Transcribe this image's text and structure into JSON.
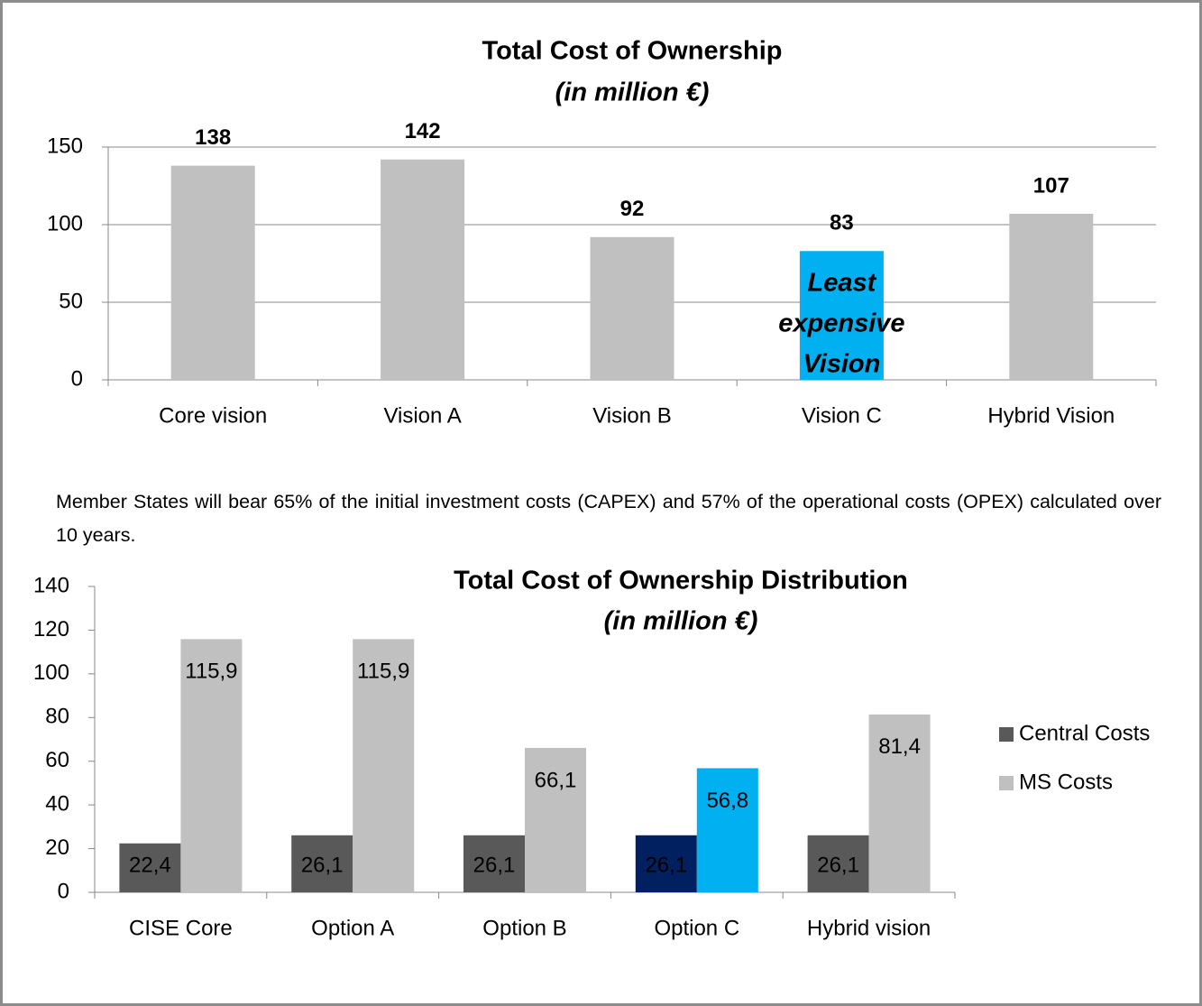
{
  "chart_data": [
    {
      "type": "bar",
      "title": "Total Cost of Ownership",
      "subtitle": "(in million €)",
      "categories": [
        "Core vision",
        "Vision A",
        "Vision B",
        "Vision C",
        "Hybrid Vision"
      ],
      "values": [
        138,
        142,
        92,
        83,
        107
      ],
      "colors": [
        "#c0c0c0",
        "#c0c0c0",
        "#c0c0c0",
        "#00b0f0",
        "#c0c0c0"
      ],
      "ylim": [
        0,
        150
      ],
      "yticks": [
        0,
        50,
        100,
        150
      ],
      "grid": true,
      "annotation": {
        "category": 3,
        "lines": [
          "Least",
          "expensive",
          "Vision"
        ]
      }
    },
    {
      "type": "grouped_bar",
      "title": "Total Cost of Ownership Distribution",
      "subtitle": "(in million €)",
      "categories": [
        "CISE Core",
        "Option A",
        "Option B",
        "Option C",
        "Hybrid vision"
      ],
      "series": [
        {
          "name": "Central Costs",
          "color": "#595959",
          "colors": [
            "#595959",
            "#595959",
            "#595959",
            "#002060",
            "#595959"
          ],
          "values": [
            22.4,
            26.1,
            26.1,
            26.1,
            26.1
          ],
          "value_labels": [
            "22,4",
            "26,1",
            "26,1",
            "26,1",
            "26,1"
          ]
        },
        {
          "name": "MS Costs",
          "color": "#c0c0c0",
          "colors": [
            "#c0c0c0",
            "#c0c0c0",
            "#c0c0c0",
            "#00b0f0",
            "#c0c0c0"
          ],
          "values": [
            115.9,
            115.9,
            66.1,
            56.8,
            81.4
          ],
          "value_labels": [
            "115,9",
            "115,9",
            "66,1",
            "56,8",
            "81,4"
          ]
        }
      ],
      "ylim": [
        0,
        140
      ],
      "yticks": [
        0,
        20,
        40,
        60,
        80,
        100,
        120,
        140
      ],
      "grid": false,
      "legend": "right"
    }
  ],
  "paragraph": "Member States will bear 65% of the initial investment costs (CAPEX) and 57% of the operational costs (OPEX) calculated over 10 years."
}
